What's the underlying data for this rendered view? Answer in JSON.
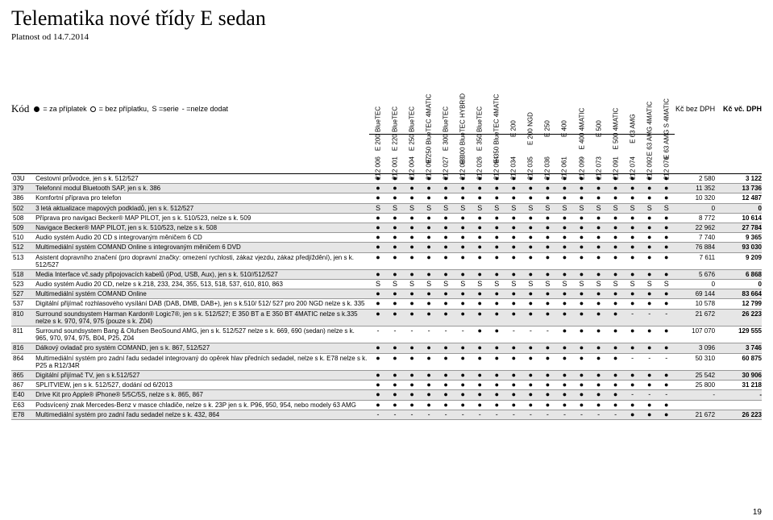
{
  "meta": {
    "title": "Telematika nové třídy E sedan",
    "subtitle": "Platnost od 14.7.2014",
    "page_number": "19"
  },
  "legend": {
    "filled_label": "= za příplatek",
    "empty_label": "= bez příplatku,",
    "s_label": "S =serie",
    "dash_label": "- =nelze dodat",
    "kod_label": "Kód"
  },
  "columns": {
    "engines": [
      {
        "name": "E 200 BlueTEC",
        "code": "212 006"
      },
      {
        "name": "E 220 BlueTEC",
        "code": "212 001"
      },
      {
        "name": "E 250 BlueTEC",
        "code": "212 004"
      },
      {
        "name": "E 250 BlueTEC 4MATIC",
        "code": "212 097"
      },
      {
        "name": "E 300 BlueTEC",
        "code": "212 027"
      },
      {
        "name": "E 300 BlueTEC HYBRID",
        "code": "212 098"
      },
      {
        "name": "E 350 BlueTEC",
        "code": "212 026"
      },
      {
        "name": "E 350 BlueTEC 4MATIC",
        "code": "212 094"
      },
      {
        "name": "E 200",
        "code": "212 034"
      },
      {
        "name": "E 200 NGD",
        "code": "212 035"
      },
      {
        "name": "E 250",
        "code": "212 036"
      },
      {
        "name": "E 400",
        "code": "212 061"
      },
      {
        "name": "E 400 4MATIC",
        "code": "212 099"
      },
      {
        "name": "E 500",
        "code": "212 073"
      },
      {
        "name": "E 500 4MATIC",
        "code": "212 091"
      },
      {
        "name": "E 63 AMG",
        "code": "212 074"
      },
      {
        "name": "E 63 AMG 4MATIC",
        "code": "212 092"
      },
      {
        "name": "E 63 AMG S 4MATIC",
        "code": "212 076"
      }
    ],
    "price1_label": "Kč bez DPH",
    "price2_label": "Kč vč. DPH"
  },
  "rows": [
    {
      "code": "03U",
      "desc": "Cestovní průvodce, jen s k. 512/527",
      "cells": [
        "●",
        "●",
        "●",
        "●",
        "●",
        "●",
        "●",
        "●",
        "●",
        "●",
        "●",
        "●",
        "●",
        "●",
        "●",
        "●",
        "●",
        "●"
      ],
      "p1": "2 580",
      "p2": "3 122"
    },
    {
      "code": "379",
      "desc": "Telefonní modul Bluetooth SAP, jen s k. 386",
      "cells": [
        "●",
        "●",
        "●",
        "●",
        "●",
        "●",
        "●",
        "●",
        "●",
        "●",
        "●",
        "●",
        "●",
        "●",
        "●",
        "●",
        "●",
        "●"
      ],
      "p1": "11 352",
      "p2": "13 736"
    },
    {
      "code": "386",
      "desc": "Komfortní příprava pro telefon",
      "cells": [
        "●",
        "●",
        "●",
        "●",
        "●",
        "●",
        "●",
        "●",
        "●",
        "●",
        "●",
        "●",
        "●",
        "●",
        "●",
        "●",
        "●",
        "●"
      ],
      "p1": "10 320",
      "p2": "12 487"
    },
    {
      "code": "502",
      "desc": "3 letá aktualizace mapových podkladů, jen s k. 512/527",
      "cells": [
        "S",
        "S",
        "S",
        "S",
        "S",
        "S",
        "S",
        "S",
        "S",
        "S",
        "S",
        "S",
        "S",
        "S",
        "S",
        "S",
        "S",
        "S"
      ],
      "p1": "0",
      "p2": "0"
    },
    {
      "code": "508",
      "desc": "Příprava pro navigaci Becker® MAP PILOT, jen s k. 510/523, nelze s k. 509",
      "cells": [
        "●",
        "●",
        "●",
        "●",
        "●",
        "●",
        "●",
        "●",
        "●",
        "●",
        "●",
        "●",
        "●",
        "●",
        "●",
        "●",
        "●",
        "●"
      ],
      "p1": "8 772",
      "p2": "10 614"
    },
    {
      "code": "509",
      "desc": "Navigace Becker® MAP PILOT, jen s k. 510/523, nelze s k. 508",
      "cells": [
        "●",
        "●",
        "●",
        "●",
        "●",
        "●",
        "●",
        "●",
        "●",
        "●",
        "●",
        "●",
        "●",
        "●",
        "●",
        "●",
        "●",
        "●"
      ],
      "p1": "22 962",
      "p2": "27 784"
    },
    {
      "code": "510",
      "desc": "Audio systém Audio 20 CD s integrovaným měničem 6 CD",
      "cells": [
        "●",
        "●",
        "●",
        "●",
        "●",
        "●",
        "●",
        "●",
        "●",
        "●",
        "●",
        "●",
        "●",
        "●",
        "●",
        "●",
        "●",
        "●"
      ],
      "p1": "7 740",
      "p2": "9 365"
    },
    {
      "code": "512",
      "desc": "Multimediální systém COMAND Online s integrovaným měničem 6 DVD",
      "cells": [
        "●",
        "●",
        "●",
        "●",
        "●",
        "●",
        "●",
        "●",
        "●",
        "●",
        "●",
        "●",
        "●",
        "●",
        "●",
        "●",
        "●",
        "●"
      ],
      "p1": "76 884",
      "p2": "93 030"
    },
    {
      "code": "513",
      "desc": "Asistent dopravního značení (pro dopravní značky: omezení rychlosti, zákaz vjezdu, zákaz předjíždění), jen s k. 512/527",
      "cells": [
        "●",
        "●",
        "●",
        "●",
        "●",
        "●",
        "●",
        "●",
        "●",
        "●",
        "●",
        "●",
        "●",
        "●",
        "●",
        "●",
        "●",
        "●"
      ],
      "p1": "7 611",
      "p2": "9 209"
    },
    {
      "code": "518",
      "desc": "Media Interface vč.sady připojovacích kabelů (iPod, USB, Aux), jen s k. 510//512/527",
      "cells": [
        "●",
        "●",
        "●",
        "●",
        "●",
        "●",
        "●",
        "●",
        "●",
        "●",
        "●",
        "●",
        "●",
        "●",
        "●",
        "●",
        "●",
        "●"
      ],
      "p1": "5 676",
      "p2": "6 868"
    },
    {
      "code": "523",
      "desc": "Audio systém Audio 20 CD, nelze s k.218, 233, 234, 355, 513, 518, 537, 610, 810, 863",
      "cells": [
        "S",
        "S",
        "S",
        "S",
        "S",
        "S",
        "S",
        "S",
        "S",
        "S",
        "S",
        "S",
        "S",
        "S",
        "S",
        "S",
        "S",
        "S"
      ],
      "p1": "0",
      "p2": "0"
    },
    {
      "code": "527",
      "desc": "Multimediální systém COMAND Online",
      "cells": [
        "●",
        "●",
        "●",
        "●",
        "●",
        "●",
        "●",
        "●",
        "●",
        "●",
        "●",
        "●",
        "●",
        "●",
        "●",
        "●",
        "●",
        "●"
      ],
      "p1": "69 144",
      "p2": "83 664"
    },
    {
      "code": "537",
      "desc": "Digitální přijímač rozhlasového vysílání DAB (DAB, DMB, DAB+), jen s k.510/ 512/ 527 pro 200 NGD nelze s k. 335",
      "cells": [
        "●",
        "●",
        "●",
        "●",
        "●",
        "●",
        "●",
        "●",
        "●",
        "●",
        "●",
        "●",
        "●",
        "●",
        "●",
        "●",
        "●",
        "●"
      ],
      "p1": "10 578",
      "p2": "12 799"
    },
    {
      "code": "810",
      "desc": "Surround soundsystem Harman Kardon® Logic7®, jen s k. 512/527; E 350 BT a E 350 BT 4MATIC nelze s k.335 nelze s k. 970, 974, 975 (pouze s k. Z04)",
      "cells": [
        "●",
        "●",
        "●",
        "●",
        "●",
        "●",
        "●",
        "●",
        "●",
        "●",
        "●",
        "●",
        "●",
        "●",
        "●",
        "-",
        "-",
        "-"
      ],
      "p1": "21 672",
      "p2": "26 223"
    },
    {
      "code": "811",
      "desc": "Surround soundsystem Bang & Olufsen BeoSound AMG, jen s k. 512/527 nelze s k. 669, 690 (sedan) nelze s k. 965, 970, 974, 975, B04, P25, Z04",
      "cells": [
        "-",
        "-",
        "-",
        "-",
        "-",
        "-",
        "●",
        "●",
        "-",
        "-",
        "-",
        "●",
        "●",
        "●",
        "●",
        "●",
        "●",
        "●"
      ],
      "p1": "107 070",
      "p2": "129 555"
    },
    {
      "code": "816",
      "desc": "Dálkový ovladač pro systém COMAND, jen s k. 867, 512/527",
      "cells": [
        "●",
        "●",
        "●",
        "●",
        "●",
        "●",
        "●",
        "●",
        "●",
        "●",
        "●",
        "●",
        "●",
        "●",
        "●",
        "●",
        "●",
        "●"
      ],
      "p1": "3 096",
      "p2": "3 746"
    },
    {
      "code": "864",
      "desc": "Multimediální systém pro zadní řadu sedadel integrovaný do opěrek hlav předních sedadel, nelze s k. E78 nelze s k. P25 a R12/34R",
      "cells": [
        "●",
        "●",
        "●",
        "●",
        "●",
        "●",
        "●",
        "●",
        "●",
        "●",
        "●",
        "●",
        "●",
        "●",
        "●",
        "-",
        "-",
        "-"
      ],
      "p1": "50 310",
      "p2": "60 875"
    },
    {
      "code": "865",
      "desc": "Digitální přijímač TV, jen s k.512/527",
      "cells": [
        "●",
        "●",
        "●",
        "●",
        "●",
        "●",
        "●",
        "●",
        "●",
        "●",
        "●",
        "●",
        "●",
        "●",
        "●",
        "●",
        "●",
        "●"
      ],
      "p1": "25 542",
      "p2": "30 906"
    },
    {
      "code": "867",
      "desc": "SPLITVIEW, jen s k. 512/527, dodání od 6/2013",
      "cells": [
        "●",
        "●",
        "●",
        "●",
        "●",
        "●",
        "●",
        "●",
        "●",
        "●",
        "●",
        "●",
        "●",
        "●",
        "●",
        "●",
        "●",
        "●"
      ],
      "p1": "25 800",
      "p2": "31 218"
    },
    {
      "code": "E40",
      "desc": "Drive Kit pro Apple® iPhone® 5/5C/5S, nelze s k. 865, 867",
      "cells": [
        "●",
        "●",
        "●",
        "●",
        "●",
        "●",
        "●",
        "●",
        "●",
        "●",
        "●",
        "●",
        "●",
        "●",
        "●",
        "-",
        "-",
        "-"
      ],
      "p1": "-",
      "p2": "-"
    },
    {
      "code": "E63",
      "desc": "Podsvícený znak Mercedes-Benz v masce chladiče, nelze s k. 23P jen s k. P96, 950, 954, nebo modely 63 AMG",
      "cells": [
        "●",
        "●",
        "●",
        "●",
        "●",
        "●",
        "●",
        "●",
        "●",
        "●",
        "●",
        "●",
        "●",
        "●",
        "●",
        "●",
        "●",
        "●"
      ],
      "p1": "",
      "p2": ""
    },
    {
      "code": "E78",
      "desc": "Multimediální systém pro zadní řadu sedadel nelze s k. 432, 864",
      "cells": [
        "-",
        "-",
        "-",
        "-",
        "-",
        "-",
        "-",
        "-",
        "-",
        "-",
        "-",
        "-",
        "-",
        "-",
        "-",
        "●",
        "●",
        "●"
      ],
      "p1": "21 672",
      "p2": "26 223"
    }
  ]
}
